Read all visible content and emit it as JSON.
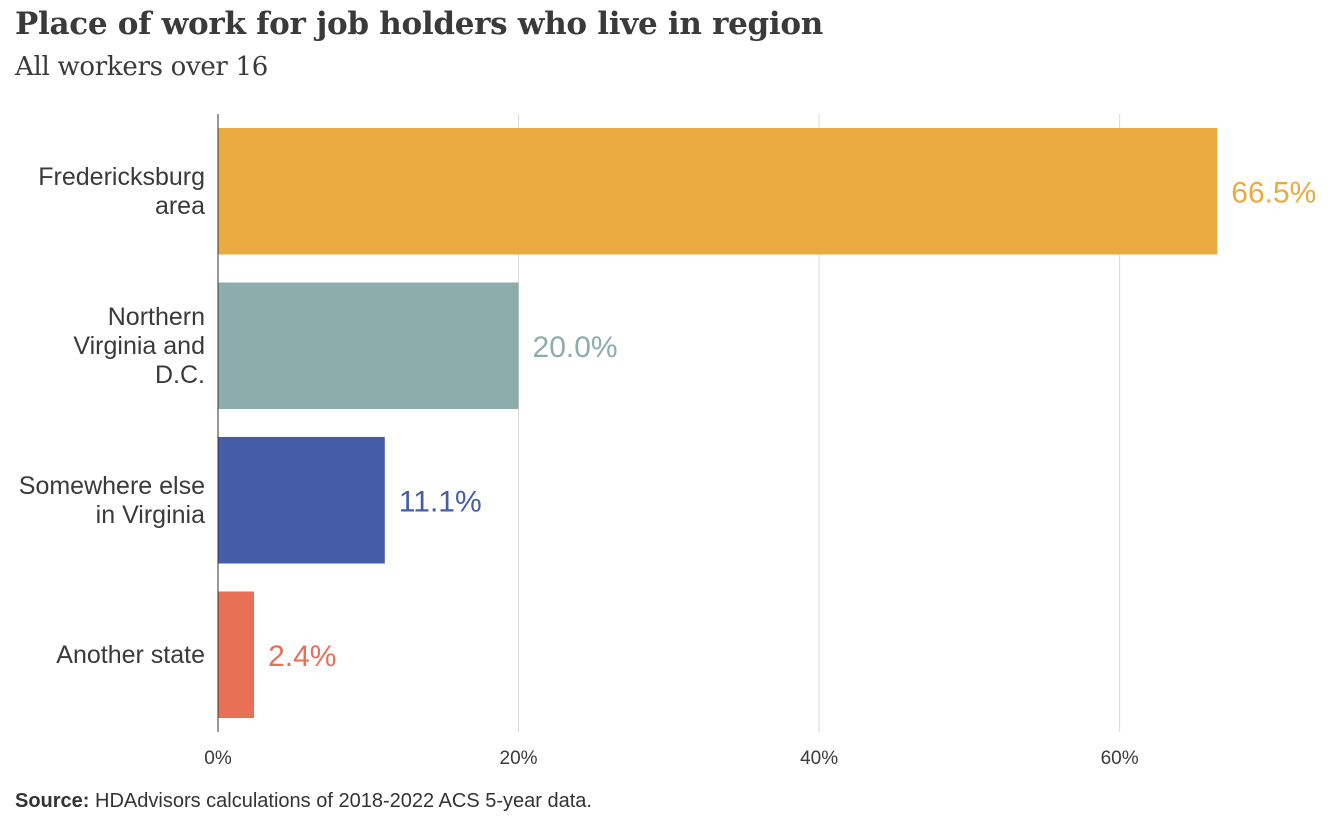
{
  "chart_data": {
    "type": "bar",
    "orientation": "horizontal",
    "title": "Place of work for job holders who live in region",
    "subtitle": "All workers over 16",
    "categories": [
      [
        "Fredericksburg",
        "area"
      ],
      [
        "Northern",
        "Virginia and",
        "D.C."
      ],
      [
        "Somewhere else",
        "in Virginia"
      ],
      [
        "Another state"
      ]
    ],
    "values": [
      66.5,
      20.0,
      11.1,
      2.4
    ],
    "data_labels": [
      "66.5%",
      "20.0%",
      "11.1%",
      "2.4%"
    ],
    "colors": [
      "#E9AB40",
      "#8BADAB",
      "#455CA9",
      "#E87155"
    ],
    "xlim": [
      0,
      74
    ],
    "x_ticks": [
      0,
      20,
      40,
      60
    ],
    "x_tick_labels": [
      "0%",
      "20%",
      "40%",
      "60%"
    ],
    "grid": true
  },
  "source": {
    "label": "Source:",
    "text": " HDAdvisors  calculations of 2018-2022  ACS 5-year  data."
  }
}
